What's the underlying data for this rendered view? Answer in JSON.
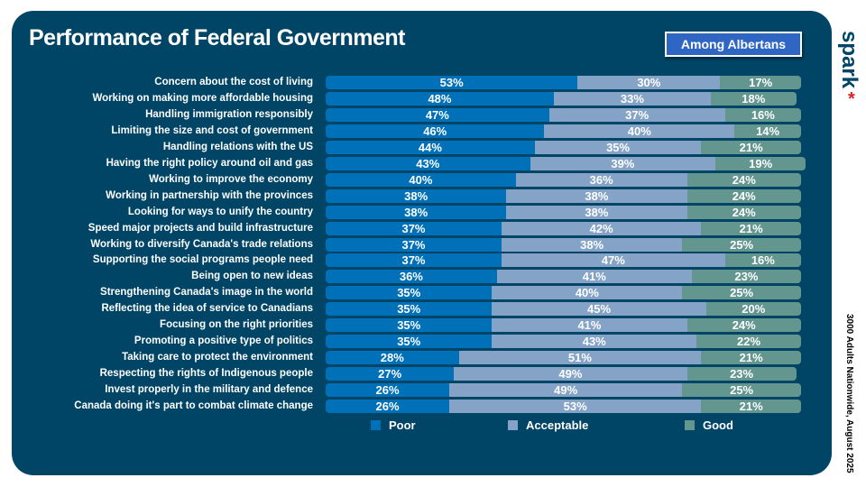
{
  "title": "Performance of Federal Government",
  "badge": "Among Albertans",
  "logo": "spark",
  "sample_note": "3000 Adults Nationwide, August 2025",
  "colors": {
    "background": "#004466",
    "poor": "#0070b8",
    "acceptable": "#84a3c6",
    "good": "#62968f"
  },
  "chart_data": {
    "type": "bar",
    "stacked": true,
    "orientation": "horizontal",
    "title": "Performance of Federal Government",
    "legend_position": "bottom",
    "categories": [
      "Concern about the cost of living",
      "Working on making more affordable housing",
      "Handling immigration responsibly",
      "Limiting the size and cost of government",
      "Handling relations with the US",
      "Having the right policy around oil and gas",
      "Working to improve the economy",
      "Working in partnership with the provinces",
      "Looking for ways to unify the country",
      "Speed major projects and build infrastructure",
      "Working to diversify Canada's trade relations",
      "Supporting the social programs people need",
      "Being open to new ideas",
      "Strengthening Canada's image in the world",
      "Reflecting the idea of service to Canadians",
      "Focusing on the right priorities",
      "Promoting a positive type of politics",
      "Taking care to protect the environment",
      "Respecting the rights of Indigenous people",
      "Invest properly in the military and defence",
      "Canada doing it's part to combat climate change"
    ],
    "series": [
      {
        "name": "Poor",
        "values": [
          53,
          48,
          47,
          46,
          44,
          43,
          40,
          38,
          38,
          37,
          37,
          37,
          36,
          35,
          35,
          35,
          35,
          28,
          27,
          26,
          26
        ]
      },
      {
        "name": "Acceptable",
        "values": [
          30,
          33,
          37,
          40,
          35,
          39,
          36,
          38,
          38,
          42,
          38,
          47,
          41,
          40,
          45,
          41,
          43,
          51,
          49,
          49,
          53
        ]
      },
      {
        "name": "Good",
        "values": [
          17,
          18,
          16,
          14,
          21,
          19,
          24,
          24,
          24,
          21,
          25,
          16,
          23,
          25,
          20,
          24,
          22,
          21,
          23,
          25,
          21
        ]
      }
    ],
    "unit": "%"
  }
}
